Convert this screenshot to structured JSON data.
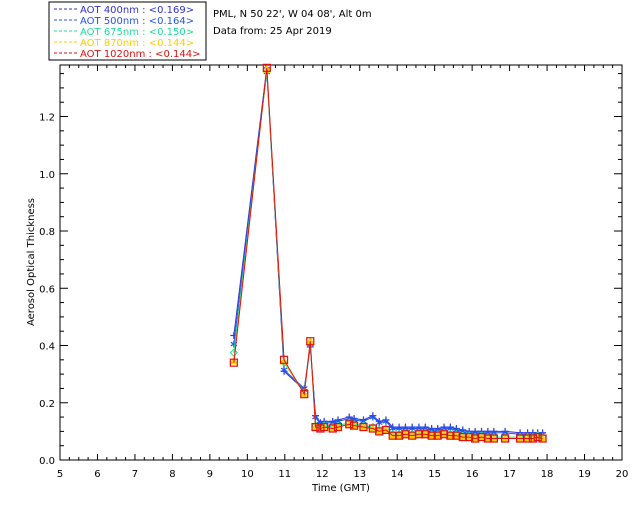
{
  "chart_data": {
    "type": "scatter",
    "info": {
      "station": "PML, N 50 22', W 04 08', Alt 0m",
      "date": "Data from: 25 Apr 2019"
    },
    "xlabel": "Time (GMT)",
    "ylabel": "Aerosol Optical Thickness",
    "xlim": [
      5,
      20
    ],
    "ylim": [
      0,
      1.38
    ],
    "xticks": [
      5,
      6,
      7,
      8,
      9,
      10,
      11,
      12,
      13,
      14,
      15,
      16,
      17,
      18,
      19,
      20
    ],
    "yticks": [
      0.0,
      0.2,
      0.4,
      0.6,
      0.8,
      1.0,
      1.2
    ],
    "ytick_labels": [
      "0.0",
      "0.2",
      "0.4",
      "0.6",
      "0.8",
      "1.0",
      "1.2"
    ],
    "grid": false,
    "legend_position": "top-left",
    "x": [
      9.64,
      10.52,
      10.98,
      11.52,
      11.68,
      11.82,
      11.95,
      12.05,
      12.28,
      12.42,
      12.72,
      12.85,
      13.1,
      13.35,
      13.52,
      13.7,
      13.88,
      14.05,
      14.22,
      14.4,
      14.58,
      14.75,
      14.92,
      15.08,
      15.25,
      15.42,
      15.58,
      15.75,
      15.92,
      16.08,
      16.25,
      16.42,
      16.58,
      16.88,
      17.28,
      17.48,
      17.62,
      17.75,
      17.88
    ],
    "series": [
      {
        "name": "AOT  400nm : <0.169>",
        "color": "#3333cc",
        "marker": "plus",
        "values": [
          0.435,
          1.37,
          0.31,
          0.245,
          0.395,
          0.155,
          0.13,
          0.135,
          0.135,
          0.14,
          0.15,
          0.145,
          0.14,
          0.155,
          0.135,
          0.14,
          0.115,
          0.115,
          0.115,
          0.115,
          0.115,
          0.115,
          0.11,
          0.11,
          0.115,
          0.115,
          0.11,
          0.105,
          0.1,
          0.1,
          0.1,
          0.1,
          0.1,
          0.1,
          0.095,
          0.095,
          0.095,
          0.095,
          0.095
        ]
      },
      {
        "name": "AOT  500nm : <0.164>",
        "color": "#2255ee",
        "marker": "asterisk",
        "values": [
          0.405,
          1.355,
          0.315,
          0.25,
          0.405,
          0.15,
          0.125,
          0.13,
          0.13,
          0.135,
          0.145,
          0.14,
          0.135,
          0.15,
          0.13,
          0.135,
          0.11,
          0.11,
          0.11,
          0.11,
          0.11,
          0.11,
          0.105,
          0.105,
          0.11,
          0.11,
          0.105,
          0.1,
          0.095,
          0.095,
          0.095,
          0.095,
          0.095,
          0.095,
          0.09,
          0.09,
          0.09,
          0.09,
          0.09
        ]
      },
      {
        "name": "AOT  675nm : <0.150>",
        "color": "#22dd99",
        "marker": "diamond",
        "values": [
          0.375,
          1.36,
          0.34,
          0.235,
          0.41,
          0.12,
          0.115,
          0.12,
          0.115,
          0.12,
          0.13,
          0.125,
          0.12,
          0.115,
          0.105,
          0.11,
          0.09,
          0.09,
          0.095,
          0.09,
          0.095,
          0.095,
          0.09,
          0.09,
          0.095,
          0.09,
          0.09,
          0.085,
          0.085,
          0.08,
          0.085,
          0.08,
          0.08,
          0.08,
          0.08,
          0.08,
          0.08,
          0.085,
          0.08
        ]
      },
      {
        "name": "AOT  870nm : <0.144>",
        "color": "#ffcc00",
        "marker": "triangle",
        "values": [
          0.345,
          1.365,
          0.345,
          0.23,
          0.415,
          0.115,
          0.11,
          0.115,
          0.11,
          0.115,
          0.125,
          0.12,
          0.115,
          0.11,
          0.1,
          0.105,
          0.085,
          0.085,
          0.09,
          0.085,
          0.09,
          0.09,
          0.085,
          0.085,
          0.09,
          0.085,
          0.085,
          0.08,
          0.08,
          0.075,
          0.08,
          0.075,
          0.075,
          0.075,
          0.075,
          0.075,
          0.075,
          0.08,
          0.075
        ]
      },
      {
        "name": "AOT 1020nm : <0.144>",
        "color": "#dd1111",
        "marker": "square",
        "values": [
          0.34,
          1.37,
          0.35,
          0.23,
          0.415,
          0.115,
          0.11,
          0.115,
          0.11,
          0.115,
          0.125,
          0.12,
          0.115,
          0.11,
          0.1,
          0.105,
          0.085,
          0.085,
          0.09,
          0.085,
          0.09,
          0.09,
          0.085,
          0.085,
          0.09,
          0.085,
          0.085,
          0.08,
          0.08,
          0.075,
          0.08,
          0.075,
          0.075,
          0.075,
          0.075,
          0.075,
          0.075,
          0.08,
          0.075
        ]
      }
    ]
  }
}
